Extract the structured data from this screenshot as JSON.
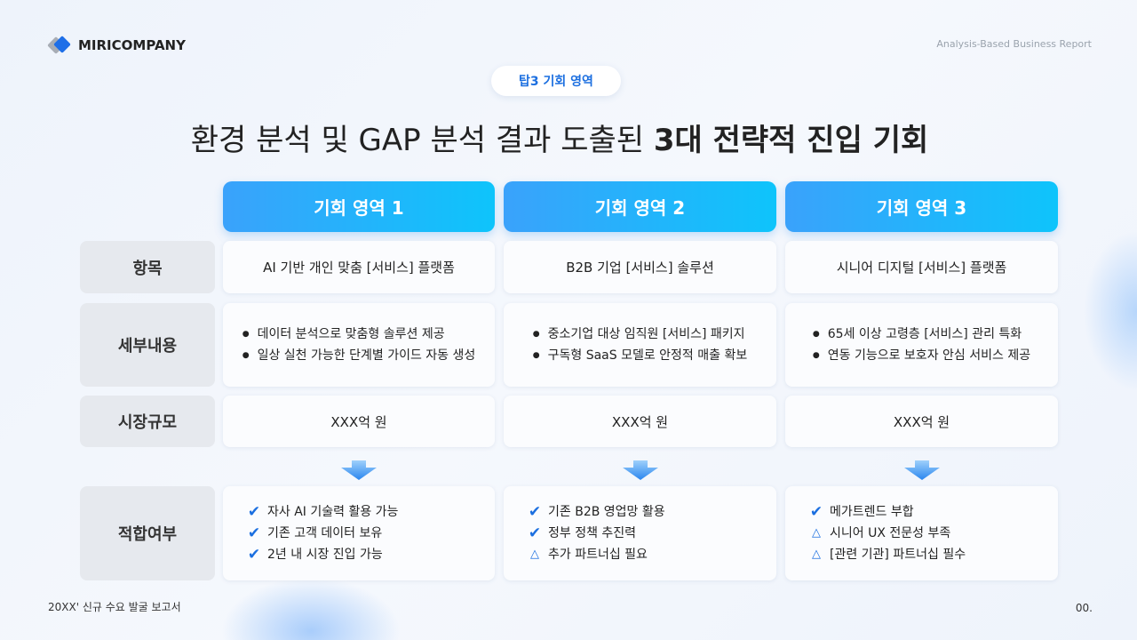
{
  "brand": {
    "name": "MIRICOMPANY",
    "report_label": "Analysis-Based Business Report"
  },
  "badge": "탑3 기회 영역",
  "title": {
    "normal": "환경 분석 및 GAP 분석 결과 도출된 ",
    "bold": "3대 전략적 진입 기회"
  },
  "columns": [
    "기회 영역 1",
    "기회 영역 2",
    "기회 영역 3"
  ],
  "row_labels": [
    "항목",
    "세부내용",
    "시장규모",
    "적합여부"
  ],
  "items": [
    "AI 기반 개인 맞춤 [서비스] 플랫폼",
    "B2B 기업 [서비스] 솔루션",
    "시니어 디지털 [서비스] 플랫폼"
  ],
  "details": [
    [
      "데이터 분석으로 맞춤형 솔루션 제공",
      "일상 실천 가능한 단계별 가이드 자동 생성"
    ],
    [
      "중소기업 대상 임직원 [서비스] 패키지",
      "구독형 SaaS 모델로 안정적 매출 확보"
    ],
    [
      "65세 이상 고령층 [서비스] 관리 특화",
      "연동 기능으로 보호자 안심 서비스 제공"
    ]
  ],
  "market": [
    "XXX억 원",
    "XXX억 원",
    "XXX억 원"
  ],
  "fit": [
    [
      {
        "icon": "check",
        "text": "자사 AI 기술력 활용 가능"
      },
      {
        "icon": "check",
        "text": "기존 고객 데이터 보유"
      },
      {
        "icon": "check",
        "text": "2년 내 시장 진입 가능"
      }
    ],
    [
      {
        "icon": "check",
        "text": "기존 B2B 영업망 활용"
      },
      {
        "icon": "check",
        "text": "정부 정책 추진력"
      },
      {
        "icon": "triangle",
        "text": "추가 파트너십 필요"
      }
    ],
    [
      {
        "icon": "check",
        "text": "메가트렌드 부합"
      },
      {
        "icon": "triangle",
        "text": "시니어 UX 전문성 부족"
      },
      {
        "icon": "triangle",
        "text": "[관련 기관] 파트너십 필수"
      }
    ]
  ],
  "footer": {
    "left": "20XX' 신규 수요 발굴 보고서",
    "right": "00."
  },
  "colors": {
    "accent": "#1c6fe0",
    "header_start": "#3aa2fb",
    "header_end": "#0ec4fb",
    "label_bg": "#e6e9ee"
  }
}
